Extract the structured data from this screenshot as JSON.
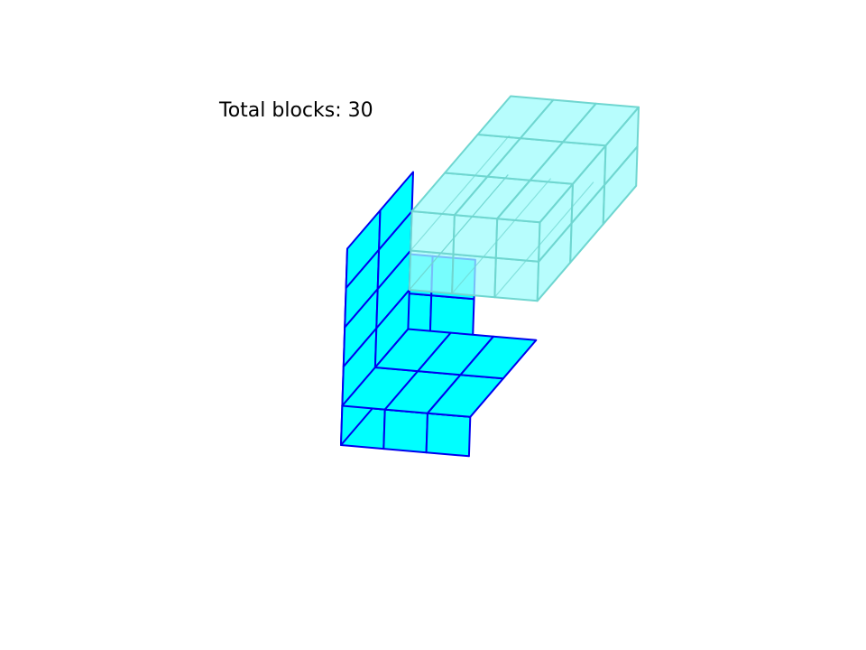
{
  "title": "Total blocks: 30",
  "colors": {
    "block_fill": "#00ffff",
    "solid_edge": "#0000ee",
    "ghost_fill": "#9ffcfc",
    "ghost_edge": "#6fd6d0"
  },
  "grid": {
    "rows": 5,
    "cols": 3,
    "front_depth": 2,
    "ghost_rows": 2,
    "ghost_depth": 3
  }
}
